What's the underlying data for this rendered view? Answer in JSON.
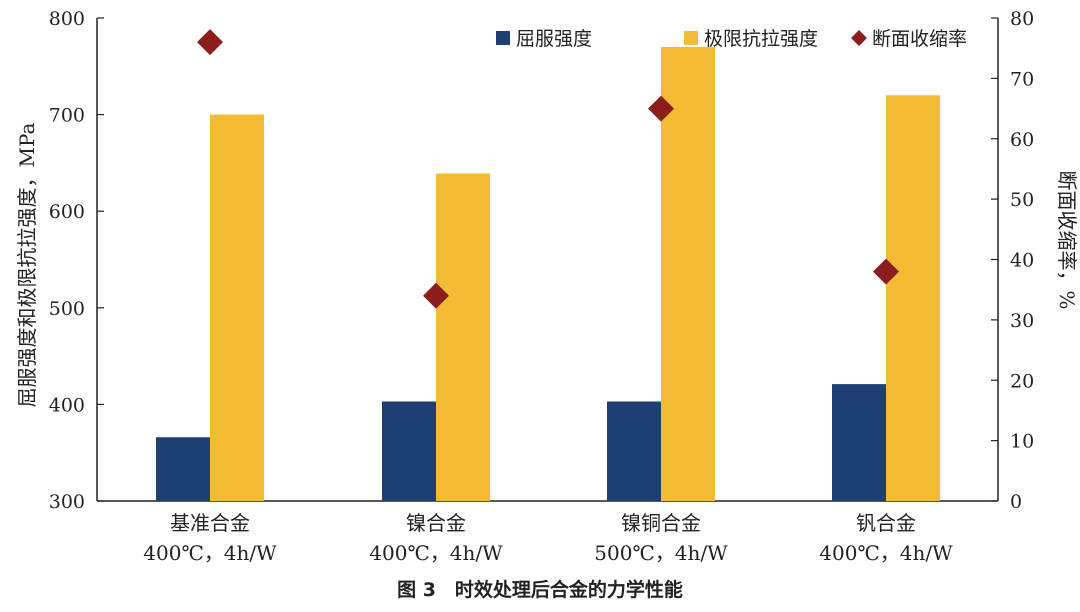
{
  "chart_data": {
    "type": "bar",
    "categories": [
      "基准合金",
      "镍合金",
      "镍铜合金",
      "钒合金"
    ],
    "category_notes": [
      "400℃，4h/W",
      "400℃，4h/W",
      "500℃，4h/W",
      "400℃，4h/W"
    ],
    "series": [
      {
        "name": "屈服强度",
        "axis": "left",
        "color": "#1f3f73",
        "values": [
          366,
          403,
          403,
          421
        ]
      },
      {
        "name": "极限抗拉强度",
        "axis": "left",
        "color": "#f2bb33",
        "values": [
          700,
          639,
          770,
          720
        ]
      },
      {
        "name": "断面收缩率",
        "axis": "right",
        "marker": "diamond",
        "color": "#8c1d1d",
        "values": [
          76,
          34,
          65,
          38
        ]
      }
    ],
    "ylabel": "屈服强度和极限抗拉强度，MPa",
    "y2label": "断面收缩率，%",
    "ylim": [
      300,
      800
    ],
    "y2lim": [
      0,
      80
    ],
    "yticks": [
      300,
      400,
      500,
      600,
      700,
      800
    ],
    "y2ticks": [
      0,
      10,
      20,
      30,
      40,
      50,
      60,
      70,
      80
    ],
    "legend_position": "top-right",
    "grid": false
  },
  "caption": "图 3　时效处理后合金的力学性能"
}
